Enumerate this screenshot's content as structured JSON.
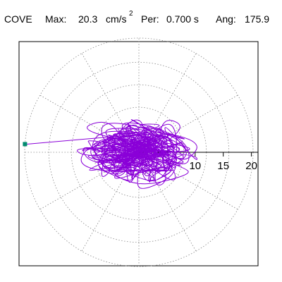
{
  "header": {
    "station": "COVE",
    "max_label": "Max:",
    "max_value": "20.3",
    "max_unit": "cm/s",
    "max_unit_exp": "2",
    "per_label": "Per:",
    "per_value": "0.700 s",
    "ang_label": "Ang:",
    "ang_value": "175.9"
  },
  "chart_data": {
    "type": "scatter",
    "subtype": "polar-particle-motion",
    "station": "COVE",
    "max_amplitude": 20.3,
    "max_unit": "cm/s^2",
    "period_s": 0.7,
    "angle_deg": 175.9,
    "radial_ticks": [
      "10",
      "15",
      "20"
    ],
    "radial_tick_values": [
      10,
      15,
      20
    ],
    "radial_max": 20,
    "angular_grid_step_deg": 30,
    "grid": true,
    "marker_at_max": {
      "angle_deg": 175.9,
      "radius": 20.3
    },
    "colors": {
      "trace": "#8a00d8",
      "marker": "#008a6e",
      "grid": "#888888",
      "frame": "#000000"
    },
    "trace_approx": {
      "description_points_xy": [
        [
          -20.3,
          1.4
        ],
        [
          -12,
          4
        ],
        [
          -4,
          6
        ],
        [
          4,
          6.5
        ],
        [
          9,
          4
        ],
        [
          10,
          0
        ],
        [
          8,
          -3
        ],
        [
          2,
          -5.5
        ],
        [
          -5,
          -5
        ],
        [
          -10,
          -2
        ],
        [
          -11,
          2
        ],
        [
          -7,
          5
        ],
        [
          0,
          6.8
        ],
        [
          6,
          5
        ],
        [
          9,
          1
        ],
        [
          7,
          -4
        ],
        [
          1,
          -6.5
        ],
        [
          -6,
          -4.5
        ],
        [
          -9,
          -1
        ],
        [
          -6,
          3
        ],
        [
          0,
          4
        ],
        [
          5,
          3
        ],
        [
          6,
          0
        ],
        [
          3,
          -3
        ],
        [
          -2,
          -3
        ],
        [
          -3,
          0
        ],
        [
          0,
          2
        ],
        [
          2,
          0
        ],
        [
          0,
          -1
        ],
        [
          0,
          0
        ]
      ]
    }
  }
}
